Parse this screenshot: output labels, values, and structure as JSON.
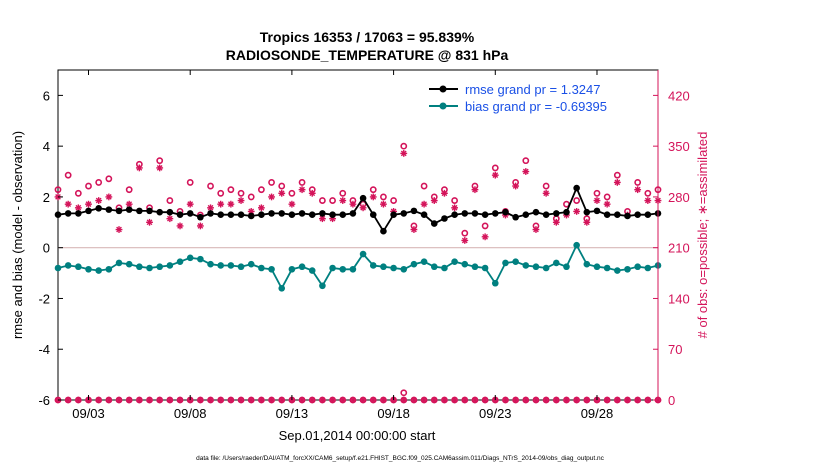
{
  "colors": {
    "rmse": "#000000",
    "bias": "#008080",
    "obs": "#d4145a",
    "zero_line": "#d8b8b8",
    "legend_text": "#1a50e6",
    "axis": "#000000"
  },
  "chart_data": {
    "type": "line",
    "title": "Tropics 16353 / 17063 = 95.839%",
    "subtitle": "RADIOSONDE_TEMPERATURE @ 831 hPa",
    "xlabel": "Sep.01,2014 00:00:00 start",
    "ylabel_left": "rmse and bias (model - observation)",
    "ylabel_right": "# of obs: o=possible; ∗=assimilated",
    "footer": "data file: /Users/raeder/DAI/ATM_forcXX/CAM6_setup/f.e21.FHIST_BGC.f09_025.CAM6assim.011/Diags_NTrS_2014-09/obs_diag_output.nc",
    "xlim": [
      1.5,
      31.0
    ],
    "ylim_left": [
      -6,
      7
    ],
    "ylim_right": [
      0,
      455
    ],
    "x_ticks": [
      3,
      8,
      13,
      18,
      23,
      28
    ],
    "x_tick_labels": [
      "09/03",
      "09/08",
      "09/13",
      "09/18",
      "09/23",
      "09/28"
    ],
    "y_ticks_left": [
      -6,
      -4,
      -2,
      0,
      2,
      4,
      6
    ],
    "y_tick_labels_left": [
      "-6",
      "-4",
      "-2",
      "0",
      "2",
      "4",
      "6"
    ],
    "y_ticks_right": [
      0,
      70,
      140,
      210,
      280,
      350,
      420
    ],
    "y_tick_labels_right": [
      "0",
      "70",
      "140",
      "210",
      "280",
      "350",
      "420"
    ],
    "legend": {
      "position": "top-right",
      "entries": [
        "rmse grand pr = 1.3247",
        "bias grand pr = -0.69395"
      ]
    },
    "x": [
      1.5,
      2.0,
      2.5,
      3.0,
      3.5,
      4.0,
      4.5,
      5.0,
      5.5,
      6.0,
      6.5,
      7.0,
      7.5,
      8.0,
      8.5,
      9.0,
      9.5,
      10.0,
      10.5,
      11.0,
      11.5,
      12.0,
      12.5,
      13.0,
      13.5,
      14.0,
      14.5,
      15.0,
      15.5,
      16.0,
      16.5,
      17.0,
      17.5,
      18.0,
      18.5,
      19.0,
      19.5,
      20.0,
      20.5,
      21.0,
      21.5,
      22.0,
      22.5,
      23.0,
      23.5,
      24.0,
      24.5,
      25.0,
      25.5,
      26.0,
      26.5,
      27.0,
      27.5,
      28.0,
      28.5,
      29.0,
      29.5,
      30.0,
      30.5,
      31.0
    ],
    "series": [
      {
        "name": "rmse",
        "values": [
          1.3,
          1.35,
          1.35,
          1.45,
          1.55,
          1.5,
          1.45,
          1.5,
          1.45,
          1.45,
          1.4,
          1.4,
          1.3,
          1.35,
          1.2,
          1.35,
          1.3,
          1.3,
          1.3,
          1.25,
          1.3,
          1.35,
          1.35,
          1.3,
          1.35,
          1.3,
          1.35,
          1.3,
          1.3,
          1.35,
          1.95,
          1.3,
          0.65,
          1.3,
          1.35,
          1.45,
          1.3,
          0.95,
          1.15,
          1.3,
          1.35,
          1.35,
          1.3,
          1.35,
          1.4,
          1.2,
          1.3,
          1.4,
          1.3,
          1.35,
          1.4,
          2.35,
          1.4,
          1.45,
          1.3,
          1.3,
          1.25,
          1.3,
          1.3,
          1.35
        ]
      },
      {
        "name": "bias",
        "values": [
          -0.8,
          -0.7,
          -0.75,
          -0.85,
          -0.9,
          -0.85,
          -0.6,
          -0.65,
          -0.75,
          -0.8,
          -0.75,
          -0.7,
          -0.55,
          -0.4,
          -0.45,
          -0.65,
          -0.7,
          -0.7,
          -0.75,
          -0.65,
          -0.8,
          -0.85,
          -1.6,
          -0.85,
          -0.75,
          -0.9,
          -1.5,
          -0.8,
          -0.85,
          -0.85,
          -0.25,
          -0.7,
          -0.75,
          -0.8,
          -0.85,
          -0.65,
          -0.55,
          -0.75,
          -0.8,
          -0.55,
          -0.65,
          -0.75,
          -0.8,
          -1.4,
          -0.6,
          -0.55,
          -0.7,
          -0.75,
          -0.8,
          -0.6,
          -0.75,
          0.1,
          -0.65,
          -0.75,
          -0.8,
          -0.9,
          -0.85,
          -0.75,
          -0.8,
          -0.7
        ]
      },
      {
        "name": "obs_possible",
        "values": [
          290,
          310,
          285,
          295,
          300,
          305,
          265,
          290,
          325,
          265,
          330,
          275,
          260,
          300,
          255,
          295,
          285,
          290,
          285,
          280,
          290,
          300,
          295,
          285,
          300,
          290,
          275,
          275,
          285,
          275,
          270,
          290,
          280,
          275,
          350,
          240,
          295,
          280,
          290,
          275,
          230,
          295,
          240,
          320,
          260,
          300,
          330,
          240,
          295,
          250,
          270,
          275,
          250,
          285,
          280,
          310,
          260,
          300,
          285,
          290
        ]
      },
      {
        "name": "obs_assimilated",
        "values": [
          280,
          270,
          265,
          270,
          275,
          280,
          235,
          270,
          320,
          245,
          320,
          250,
          240,
          270,
          240,
          265,
          270,
          270,
          275,
          260,
          265,
          280,
          285,
          270,
          290,
          285,
          250,
          250,
          275,
          270,
          265,
          280,
          270,
          260,
          340,
          235,
          270,
          275,
          285,
          265,
          220,
          290,
          225,
          310,
          255,
          295,
          315,
          235,
          285,
          245,
          255,
          260,
          245,
          275,
          270,
          300,
          255,
          290,
          275,
          275
        ]
      }
    ],
    "annotations": [
      {
        "name": "obs_near_zero_possible",
        "x": [
          18.5
        ],
        "values": [
          10
        ]
      }
    ]
  }
}
